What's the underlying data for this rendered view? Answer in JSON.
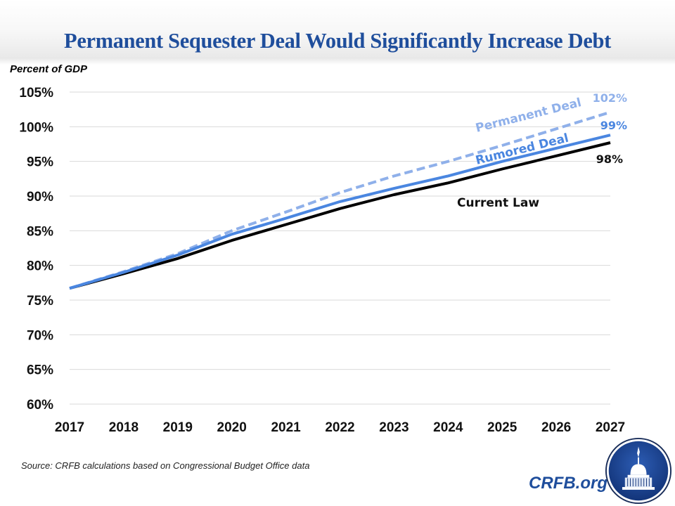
{
  "header": {
    "title": "Permanent Sequester Deal Would Significantly Increase Debt"
  },
  "footer": {
    "source": "Source: CRFB calculations based on Congressional Budget Office data",
    "brand": "CRFB.org",
    "logo_icon": "capitol-dome-seal-icon"
  },
  "colors": {
    "title": "#1f4e9c",
    "current_law": "#000000",
    "rumored_deal": "#4a86e0",
    "permanent_deal": "#8fb0ea",
    "gridline": "#d9d9d9"
  },
  "chart_data": {
    "type": "line",
    "title": "Permanent Sequester Deal Would Significantly Increase Debt",
    "xlabel": "",
    "ylabel": "Percent of GDP",
    "ylim": [
      60,
      105
    ],
    "yticks": [
      60,
      65,
      70,
      75,
      80,
      85,
      90,
      95,
      100,
      105
    ],
    "ytick_labels": [
      "60%",
      "65%",
      "70%",
      "75%",
      "80%",
      "85%",
      "90%",
      "95%",
      "100%",
      "105%"
    ],
    "x": [
      "2017",
      "2018",
      "2019",
      "2020",
      "2021",
      "2022",
      "2023",
      "2024",
      "2025",
      "2026",
      "2027"
    ],
    "grid": true,
    "legend": "none (direct labels on lines)",
    "series": [
      {
        "name": "Current Law",
        "style": "solid",
        "color": "#000000",
        "values": [
          76.7,
          78.8,
          81.0,
          83.6,
          85.9,
          88.2,
          90.2,
          91.9,
          93.9,
          95.8,
          97.7
        ],
        "end_label": "98%"
      },
      {
        "name": "Rumored Deal",
        "style": "solid",
        "color": "#4a86e0",
        "values": [
          76.7,
          79.0,
          81.5,
          84.5,
          86.8,
          89.2,
          91.1,
          92.9,
          95.0,
          96.9,
          98.8
        ],
        "end_label": "99%"
      },
      {
        "name": "Permanent Deal",
        "style": "dashed",
        "color": "#8fb0ea",
        "values": [
          76.7,
          79.1,
          81.7,
          85.0,
          87.7,
          90.5,
          92.9,
          95.0,
          97.3,
          99.7,
          102.1
        ],
        "end_label": "102%"
      }
    ]
  }
}
